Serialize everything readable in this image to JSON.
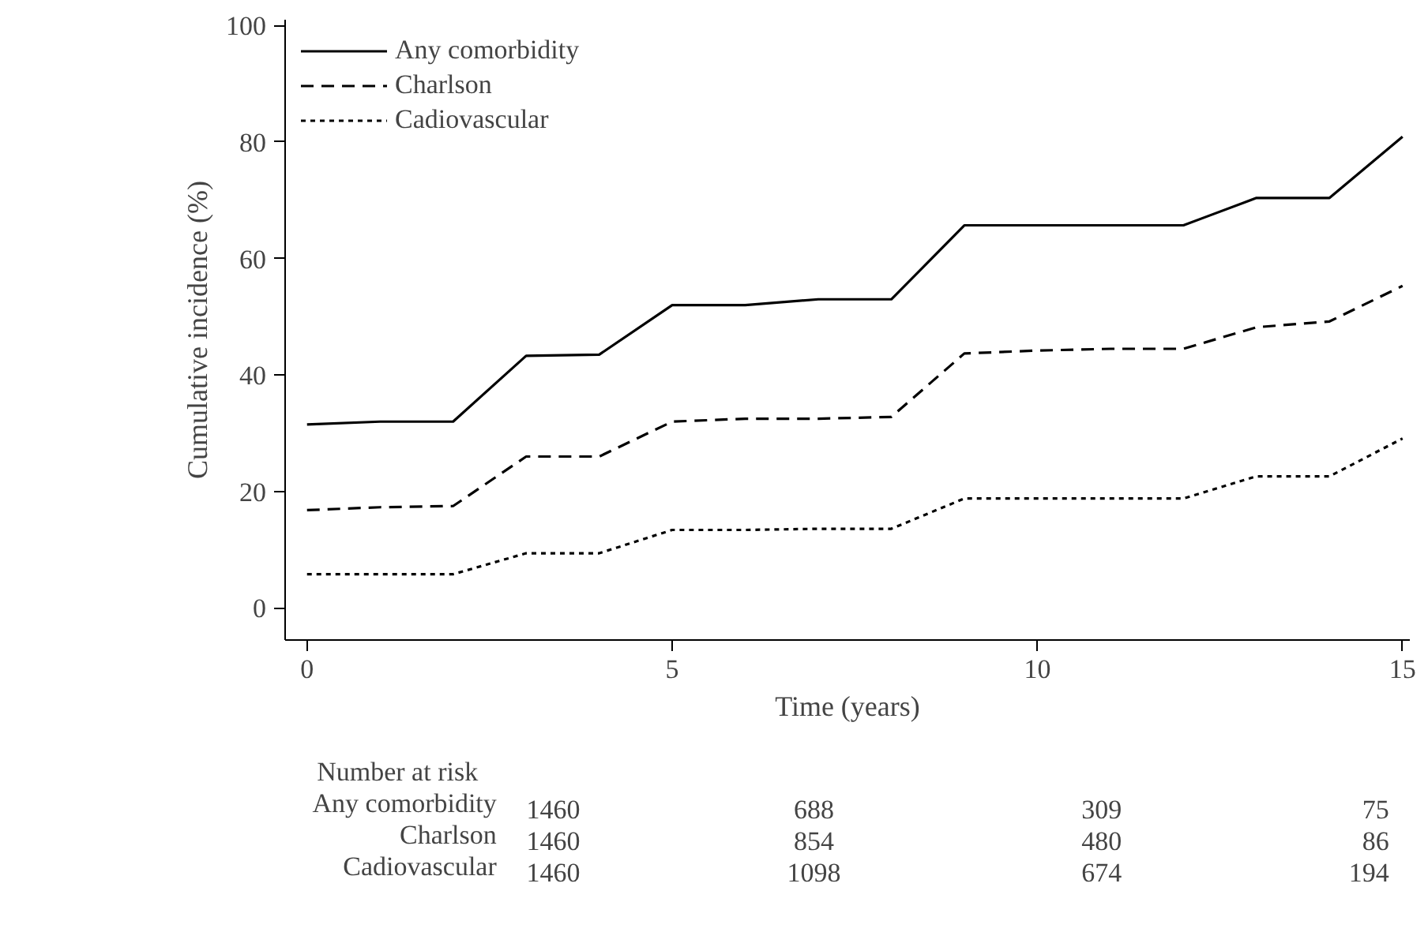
{
  "chart_data": {
    "type": "line",
    "xlabel": "Time (years)",
    "ylabel": "Cumulative incidence (%)",
    "x": [
      0,
      1,
      2,
      3,
      4,
      5,
      6,
      7,
      8,
      9,
      10,
      11,
      12,
      13,
      14,
      15
    ],
    "series": [
      {
        "name": "Any comorbidity",
        "color": "#000000",
        "line_style": "solid",
        "values": [
          31.5,
          32,
          32,
          43.3,
          43.5,
          52,
          52,
          53,
          53,
          65.7,
          65.7,
          65.7,
          65.7,
          70.4,
          70.4,
          80.9
        ]
      },
      {
        "name": "Charlson",
        "color": "#000000",
        "line_style": "dashed",
        "values": [
          16.8,
          17.3,
          17.5,
          26,
          26,
          32,
          32.5,
          32.5,
          32.8,
          43.7,
          44.2,
          44.5,
          44.5,
          48.2,
          49.2,
          55.3
        ]
      },
      {
        "name": "Cadiovascular",
        "color": "#000000",
        "line_style": "dotted",
        "values": [
          5.8,
          5.8,
          5.8,
          9.4,
          9.4,
          13.4,
          13.4,
          13.6,
          13.6,
          18.8,
          18.8,
          18.8,
          18.8,
          22.6,
          22.6,
          29.1
        ]
      }
    ],
    "xlim": [
      -0.3,
      15.1
    ],
    "ylim": [
      -5.5,
      101
    ],
    "xticks": [
      0,
      5,
      10,
      15
    ],
    "yticks": [
      0,
      20,
      40,
      60,
      80,
      100
    ],
    "grid": false,
    "legend": "top left",
    "marker": "none",
    "annotations": [
      "Number at risk",
      "Any comorbidity",
      "1460",
      "688",
      "309",
      "75",
      "Charlson",
      "1460",
      "854",
      "480",
      "86",
      "Cadiovascular",
      "1460",
      "1098",
      "674",
      "194"
    ]
  }
}
